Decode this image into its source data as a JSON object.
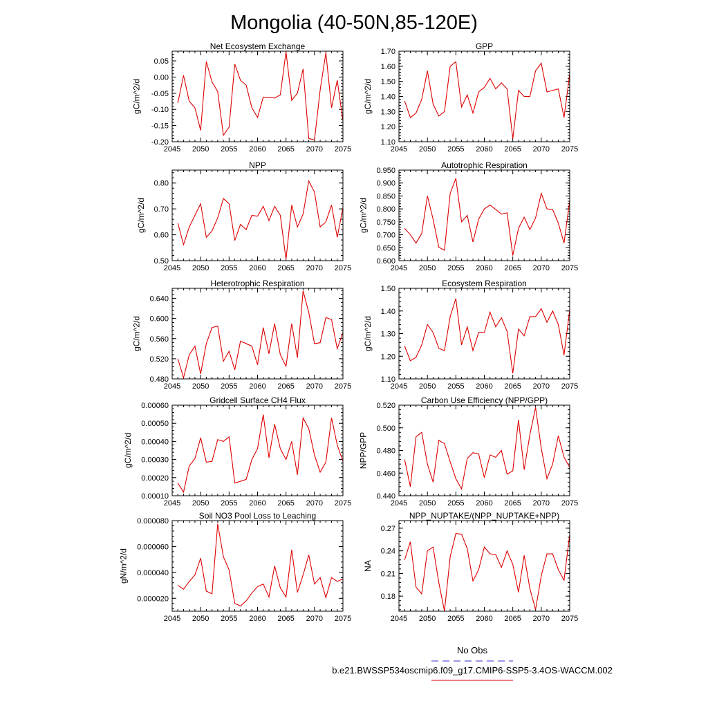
{
  "page_title": "Mongolia (40-50N,85-120E)",
  "legend": {
    "obs_label": "No Obs",
    "obs_color": "#3333cc",
    "model_label": "b.e21.BWSSP534oscmip6.f09_g17.CMIP6-SSP5-3.4OS-WACCM.002",
    "model_color": "#dd0000"
  },
  "chart_data": [
    {
      "type": "line",
      "title": "Net Ecosystem Exchange",
      "ylabel": "gC/m^2/d",
      "xlim": [
        2045,
        2075
      ],
      "ylim": [
        -0.2,
        0.08
      ],
      "xticks": [
        2045,
        2050,
        2055,
        2060,
        2065,
        2070,
        2075
      ],
      "yticks": [
        0.05,
        0.0,
        -0.05,
        -0.1,
        -0.15,
        -0.2
      ],
      "ytick_labels": [
        "0.05",
        "0.00",
        "-0.05",
        "-0.10",
        "-0.15",
        "-0.20"
      ],
      "x": [
        2046,
        2047,
        2048,
        2049,
        2050,
        2051,
        2052,
        2053,
        2054,
        2055,
        2056,
        2057,
        2058,
        2059,
        2060,
        2061,
        2062,
        2063,
        2064,
        2065,
        2066,
        2067,
        2068,
        2069,
        2070,
        2071,
        2072,
        2073,
        2074,
        2075
      ],
      "series": [
        {
          "name": "b.e21.BWSSP534oscmip6.f09_g17.CMIP6-SSP5-3.4OS-WACCM.002",
          "values": [
            -0.08,
            0.005,
            -0.075,
            -0.095,
            -0.165,
            0.048,
            -0.015,
            -0.045,
            -0.18,
            -0.155,
            0.04,
            -0.01,
            -0.025,
            -0.095,
            -0.125,
            -0.062,
            -0.063,
            -0.065,
            -0.055,
            0.078,
            -0.072,
            -0.05,
            0.025,
            -0.19,
            -0.195,
            -0.04,
            0.075,
            -0.095,
            -0.01,
            -0.135
          ]
        }
      ]
    },
    {
      "type": "line",
      "title": "GPP",
      "ylabel": "gC/m^2/d",
      "xlim": [
        2045,
        2075
      ],
      "ylim": [
        1.1,
        1.7
      ],
      "xticks": [
        2045,
        2050,
        2055,
        2060,
        2065,
        2070,
        2075
      ],
      "yticks": [
        1.1,
        1.2,
        1.3,
        1.4,
        1.5,
        1.6,
        1.7
      ],
      "ytick_labels": [
        "1.10",
        "1.20",
        "1.30",
        "1.40",
        "1.50",
        "1.60",
        "1.70"
      ],
      "x": [
        2046,
        2047,
        2048,
        2049,
        2050,
        2051,
        2052,
        2053,
        2054,
        2055,
        2056,
        2057,
        2058,
        2059,
        2060,
        2061,
        2062,
        2063,
        2064,
        2065,
        2066,
        2067,
        2068,
        2069,
        2070,
        2071,
        2072,
        2073,
        2074,
        2075
      ],
      "series": [
        {
          "name": "b.e21.BWSSP534oscmip6.f09_g17.CMIP6-SSP5-3.4OS-WACCM.002",
          "values": [
            1.37,
            1.26,
            1.29,
            1.38,
            1.57,
            1.35,
            1.27,
            1.3,
            1.6,
            1.63,
            1.33,
            1.41,
            1.29,
            1.43,
            1.46,
            1.52,
            1.45,
            1.49,
            1.45,
            1.12,
            1.44,
            1.4,
            1.4,
            1.57,
            1.62,
            1.43,
            1.44,
            1.45,
            1.26,
            1.55
          ]
        }
      ]
    },
    {
      "type": "line",
      "title": "NPP",
      "ylabel": "gC/m^2/d",
      "xlim": [
        2045,
        2075
      ],
      "ylim": [
        0.5,
        0.85
      ],
      "xticks": [
        2045,
        2050,
        2055,
        2060,
        2065,
        2070,
        2075
      ],
      "yticks": [
        0.5,
        0.6,
        0.7,
        0.8
      ],
      "ytick_labels": [
        "0.50",
        "0.60",
        "0.70",
        "0.80"
      ],
      "x": [
        2046,
        2047,
        2048,
        2049,
        2050,
        2051,
        2052,
        2053,
        2054,
        2055,
        2056,
        2057,
        2058,
        2059,
        2060,
        2061,
        2062,
        2063,
        2064,
        2065,
        2066,
        2067,
        2068,
        2069,
        2070,
        2071,
        2072,
        2073,
        2074,
        2075
      ],
      "series": [
        {
          "name": "b.e21.BWSSP534oscmip6.f09_g17.CMIP6-SSP5-3.4OS-WACCM.002",
          "values": [
            0.645,
            0.562,
            0.63,
            0.675,
            0.72,
            0.59,
            0.615,
            0.665,
            0.74,
            0.72,
            0.578,
            0.64,
            0.62,
            0.675,
            0.672,
            0.71,
            0.655,
            0.71,
            0.675,
            0.505,
            0.715,
            0.63,
            0.68,
            0.808,
            0.765,
            0.63,
            0.65,
            0.715,
            0.59,
            0.705
          ]
        }
      ]
    },
    {
      "type": "line",
      "title": "Autotrophic Respiration",
      "ylabel": "gC/m^2/d",
      "xlim": [
        2045,
        2075
      ],
      "ylim": [
        0.6,
        0.95
      ],
      "xticks": [
        2045,
        2050,
        2055,
        2060,
        2065,
        2070,
        2075
      ],
      "yticks": [
        0.6,
        0.65,
        0.7,
        0.75,
        0.8,
        0.85,
        0.9,
        0.95
      ],
      "ytick_labels": [
        "0.600",
        "0.650",
        "0.700",
        "0.750",
        "0.800",
        "0.850",
        "0.900",
        "0.950"
      ],
      "x": [
        2046,
        2047,
        2048,
        2049,
        2050,
        2051,
        2052,
        2053,
        2054,
        2055,
        2056,
        2057,
        2058,
        2059,
        2060,
        2061,
        2062,
        2063,
        2064,
        2065,
        2066,
        2067,
        2068,
        2069,
        2070,
        2071,
        2072,
        2073,
        2074,
        2075
      ],
      "series": [
        {
          "name": "b.e21.BWSSP534oscmip6.f09_g17.CMIP6-SSP5-3.4OS-WACCM.002",
          "values": [
            0.725,
            0.7,
            0.668,
            0.705,
            0.85,
            0.76,
            0.652,
            0.64,
            0.86,
            0.918,
            0.75,
            0.775,
            0.672,
            0.76,
            0.8,
            0.815,
            0.798,
            0.78,
            0.785,
            0.62,
            0.725,
            0.768,
            0.72,
            0.765,
            0.86,
            0.8,
            0.798,
            0.745,
            0.668,
            0.832
          ]
        }
      ]
    },
    {
      "type": "line",
      "title": "Heterotrophic Respiration",
      "ylabel": "gC/m^2/d",
      "xlim": [
        2045,
        2075
      ],
      "ylim": [
        0.48,
        0.66
      ],
      "xticks": [
        2045,
        2050,
        2055,
        2060,
        2065,
        2070,
        2075
      ],
      "yticks": [
        0.48,
        0.52,
        0.56,
        0.6,
        0.64
      ],
      "ytick_labels": [
        "0.480",
        "0.520",
        "0.560",
        "0.600",
        "0.640"
      ],
      "x": [
        2046,
        2047,
        2048,
        2049,
        2050,
        2051,
        2052,
        2053,
        2054,
        2055,
        2056,
        2057,
        2058,
        2059,
        2060,
        2061,
        2062,
        2063,
        2064,
        2065,
        2066,
        2067,
        2068,
        2069,
        2070,
        2071,
        2072,
        2073,
        2074,
        2075
      ],
      "series": [
        {
          "name": "b.e21.BWSSP534oscmip6.f09_g17.CMIP6-SSP5-3.4OS-WACCM.002",
          "values": [
            0.52,
            0.482,
            0.528,
            0.545,
            0.49,
            0.55,
            0.582,
            0.585,
            0.515,
            0.535,
            0.498,
            0.555,
            0.55,
            0.545,
            0.508,
            0.582,
            0.53,
            0.59,
            0.528,
            0.505,
            0.59,
            0.522,
            0.655,
            0.612,
            0.55,
            0.552,
            0.602,
            0.598,
            0.54,
            0.572
          ]
        }
      ]
    },
    {
      "type": "line",
      "title": "Ecosystem Respiration",
      "ylabel": "gC/m^2/d",
      "xlim": [
        2045,
        2075
      ],
      "ylim": [
        1.1,
        1.5
      ],
      "xticks": [
        2045,
        2050,
        2055,
        2060,
        2065,
        2070,
        2075
      ],
      "yticks": [
        1.1,
        1.2,
        1.3,
        1.4,
        1.5
      ],
      "ytick_labels": [
        "1.10",
        "1.20",
        "1.30",
        "1.40",
        "1.50"
      ],
      "x": [
        2046,
        2047,
        2048,
        2049,
        2050,
        2051,
        2052,
        2053,
        2054,
        2055,
        2056,
        2057,
        2058,
        2059,
        2060,
        2061,
        2062,
        2063,
        2064,
        2065,
        2066,
        2067,
        2068,
        2069,
        2070,
        2071,
        2072,
        2073,
        2074,
        2075
      ],
      "series": [
        {
          "name": "b.e21.BWSSP534oscmip6.f09_g17.CMIP6-SSP5-3.4OS-WACCM.002",
          "values": [
            1.245,
            1.18,
            1.195,
            1.25,
            1.34,
            1.305,
            1.235,
            1.225,
            1.375,
            1.455,
            1.25,
            1.33,
            1.225,
            1.305,
            1.305,
            1.395,
            1.33,
            1.37,
            1.31,
            1.125,
            1.32,
            1.29,
            1.375,
            1.375,
            1.41,
            1.35,
            1.4,
            1.34,
            1.205,
            1.405
          ]
        }
      ]
    },
    {
      "type": "line",
      "title": "Gridcell Surface CH4 Flux",
      "ylabel": "gC/m^2/d",
      "xlim": [
        2045,
        2075
      ],
      "ylim": [
        0.0001,
        0.0006
      ],
      "xticks": [
        2045,
        2050,
        2055,
        2060,
        2065,
        2070,
        2075
      ],
      "yticks": [
        0.0001,
        0.0002,
        0.0003,
        0.0004,
        0.0005,
        0.0006
      ],
      "ytick_labels": [
        "0.00010",
        "0.00020",
        "0.00030",
        "0.00040",
        "0.00050",
        "0.00060"
      ],
      "x": [
        2046,
        2047,
        2048,
        2049,
        2050,
        2051,
        2052,
        2053,
        2054,
        2055,
        2056,
        2057,
        2058,
        2059,
        2060,
        2061,
        2062,
        2063,
        2064,
        2065,
        2066,
        2067,
        2068,
        2069,
        2070,
        2071,
        2072,
        2073,
        2074,
        2075
      ],
      "series": [
        {
          "name": "b.e21.BWSSP534oscmip6.f09_g17.CMIP6-SSP5-3.4OS-WACCM.002",
          "values": [
            0.00017,
            0.00012,
            0.000265,
            0.000305,
            0.00042,
            0.000285,
            0.00029,
            0.00041,
            0.0004,
            0.000425,
            0.00017,
            0.00018,
            0.00019,
            0.0003,
            0.00036,
            0.000548,
            0.00031,
            0.000495,
            0.00036,
            0.0003,
            0.0004,
            0.000215,
            0.00053,
            0.00047,
            0.000325,
            0.00023,
            0.000285,
            0.00053,
            0.00038,
            0.00029
          ]
        }
      ]
    },
    {
      "type": "line",
      "title": "Carbon Use Efficiency (NPP/GPP)",
      "ylabel": "NPP/GPP",
      "xlim": [
        2045,
        2075
      ],
      "ylim": [
        0.44,
        0.52
      ],
      "xticks": [
        2045,
        2050,
        2055,
        2060,
        2065,
        2070,
        2075
      ],
      "yticks": [
        0.44,
        0.46,
        0.48,
        0.5,
        0.52
      ],
      "ytick_labels": [
        "0.440",
        "0.460",
        "0.480",
        "0.500",
        "0.520"
      ],
      "x": [
        2046,
        2047,
        2048,
        2049,
        2050,
        2051,
        2052,
        2053,
        2054,
        2055,
        2056,
        2057,
        2058,
        2059,
        2060,
        2061,
        2062,
        2063,
        2064,
        2065,
        2066,
        2067,
        2068,
        2069,
        2070,
        2071,
        2072,
        2073,
        2074,
        2075
      ],
      "series": [
        {
          "name": "b.e21.BWSSP534oscmip6.f09_g17.CMIP6-SSP5-3.4OS-WACCM.002",
          "values": [
            0.472,
            0.448,
            0.492,
            0.496,
            0.468,
            0.452,
            0.489,
            0.486,
            0.47,
            0.455,
            0.446,
            0.473,
            0.478,
            0.477,
            0.456,
            0.476,
            0.474,
            0.48,
            0.459,
            0.462,
            0.507,
            0.463,
            0.494,
            0.518,
            0.482,
            0.455,
            0.468,
            0.493,
            0.474,
            0.465
          ]
        }
      ]
    },
    {
      "type": "line",
      "title": "Soil NO3 Pool Loss to Leaching",
      "ylabel": "gN/m^2/d",
      "xlim": [
        2045,
        2075
      ],
      "ylim": [
        1e-05,
        8e-05
      ],
      "xticks": [
        2045,
        2050,
        2055,
        2060,
        2065,
        2070,
        2075
      ],
      "yticks": [
        2e-05,
        4e-05,
        6e-05,
        8e-05
      ],
      "ytick_labels": [
        "0.000020",
        "0.000040",
        "0.000060",
        "0.000080"
      ],
      "x": [
        2046,
        2047,
        2048,
        2049,
        2050,
        2051,
        2052,
        2053,
        2054,
        2055,
        2056,
        2057,
        2058,
        2059,
        2060,
        2061,
        2062,
        2063,
        2064,
        2065,
        2066,
        2067,
        2068,
        2069,
        2070,
        2071,
        2072,
        2073,
        2074,
        2075
      ],
      "series": [
        {
          "name": "b.e21.BWSSP534oscmip6.f09_g17.CMIP6-SSP5-3.4OS-WACCM.002",
          "values": [
            3e-05,
            2.7e-05,
            3.3e-05,
            3.8e-05,
            5.1e-05,
            2.55e-05,
            2.35e-05,
            7.75e-05,
            5.2e-05,
            4.2e-05,
            1.6e-05,
            1.4e-05,
            1.8e-05,
            2.4e-05,
            2.9e-05,
            3.1e-05,
            2.1e-05,
            4.5e-05,
            2.8e-05,
            2.1e-05,
            5.75e-05,
            2.45e-05,
            3.8e-05,
            5.35e-05,
            3.1e-05,
            3.6e-05,
            2.05e-05,
            3.6e-05,
            3.3e-05,
            3.5e-05
          ]
        }
      ]
    },
    {
      "type": "line",
      "title": "NPP_NUPTAKE/(NPP_NUPTAKE+NPP)",
      "ylabel": "NA",
      "xlim": [
        2045,
        2075
      ],
      "ylim": [
        0.16,
        0.28
      ],
      "xticks": [
        2045,
        2050,
        2055,
        2060,
        2065,
        2070,
        2075
      ],
      "yticks": [
        0.18,
        0.21,
        0.24,
        0.27
      ],
      "ytick_labels": [
        "0.18",
        "0.21",
        "0.24",
        "0.27"
      ],
      "x": [
        2046,
        2047,
        2048,
        2049,
        2050,
        2051,
        2052,
        2053,
        2054,
        2055,
        2056,
        2057,
        2058,
        2059,
        2060,
        2061,
        2062,
        2063,
        2064,
        2065,
        2066,
        2067,
        2068,
        2069,
        2070,
        2071,
        2072,
        2073,
        2074,
        2075
      ],
      "series": [
        {
          "name": "b.e21.BWSSP534oscmip6.f09_g17.CMIP6-SSP5-3.4OS-WACCM.002",
          "values": [
            0.228,
            0.252,
            0.192,
            0.183,
            0.24,
            0.245,
            0.198,
            0.16,
            0.232,
            0.263,
            0.262,
            0.243,
            0.2,
            0.215,
            0.245,
            0.236,
            0.235,
            0.218,
            0.24,
            0.222,
            0.185,
            0.234,
            0.19,
            0.162,
            0.207,
            0.236,
            0.236,
            0.215,
            0.201,
            0.262
          ]
        }
      ]
    }
  ]
}
